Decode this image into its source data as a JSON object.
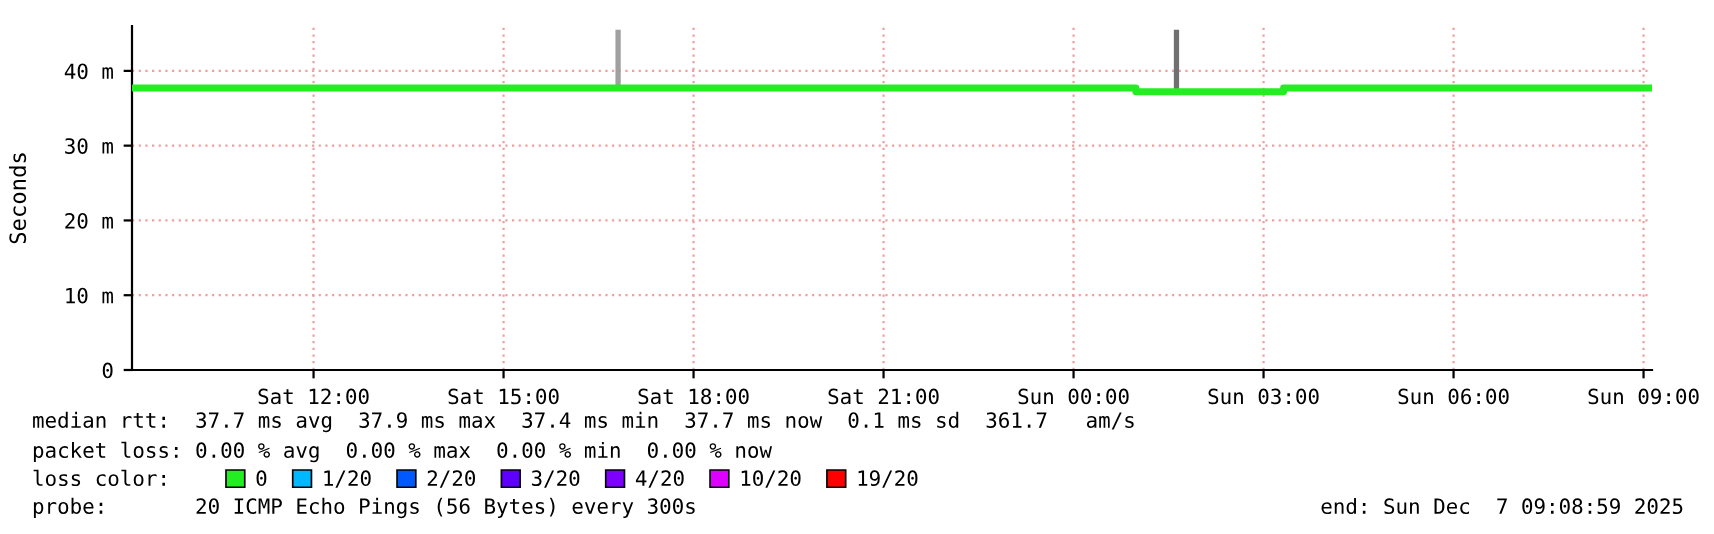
{
  "chart_data": {
    "type": "step",
    "ylabel": "Seconds",
    "xlim": [
      "2025-12-06T09:08",
      "2025-12-07T09:08"
    ],
    "xticks": [
      {
        "value": "2025-12-06T12:00",
        "label": "Sat 12:00"
      },
      {
        "value": "2025-12-06T15:00",
        "label": "Sat 15:00"
      },
      {
        "value": "2025-12-06T18:00",
        "label": "Sat 18:00"
      },
      {
        "value": "2025-12-06T21:00",
        "label": "Sat 21:00"
      },
      {
        "value": "2025-12-07T00:00",
        "label": "Sun 00:00"
      },
      {
        "value": "2025-12-07T03:00",
        "label": "Sun 03:00"
      },
      {
        "value": "2025-12-07T06:00",
        "label": "Sun 06:00"
      },
      {
        "value": "2025-12-07T09:00",
        "label": "Sun 09:00"
      }
    ],
    "ylim": [
      0,
      46
    ],
    "yticks": [
      0,
      {
        "value": 10,
        "label": "10 m"
      },
      {
        "value": 20,
        "label": "20 m"
      },
      {
        "value": 30,
        "label": "30 m"
      },
      {
        "value": 40,
        "label": "40 m"
      }
    ],
    "grid": true,
    "legend": "bottom",
    "legend_title": "loss color:",
    "series": [
      {
        "name": "0",
        "color": "#22ee22",
        "x": [
          "2025-12-06T09:08",
          "2025-12-07T00:59",
          "2025-12-07T03:19",
          "2025-12-07T09:08"
        ],
        "values": [
          37.7,
          37.2,
          37.7,
          37.7
        ]
      },
      {
        "name": "1/20",
        "color": "#00b8ff"
      },
      {
        "name": "2/20",
        "color": "#0059ff"
      },
      {
        "name": "3/20",
        "color": "#5e00ff"
      },
      {
        "name": "4/20",
        "color": "#7e00ff"
      },
      {
        "name": "10/20",
        "color": "#dd00ff"
      },
      {
        "name": "19/20",
        "color": "#ff0000"
      },
      {
        "type": "bar",
        "color": "#a0a0a0",
        "x": [
          "2025-12-06T16:46"
        ],
        "base": [
          37.8
        ],
        "values": [
          7.7
        ]
      },
      {
        "type": "bar",
        "color": "#707070",
        "x": [
          "2025-12-07T01:35"
        ],
        "base": [
          37.4
        ],
        "values": [
          8.1
        ]
      }
    ],
    "annotations": [
      "median rtt:  37.7 ms avg  37.9 ms max  37.4 ms min  37.7 ms now  0.1 ms sd  361.7   am/s",
      "packet loss: 0.00 % avg  0.00 % max  0.00 % min  0.00 % now",
      "probe:       20 ICMP Echo Pings (56 Bytes) every 300s",
      "end: Sun Dec  7 09:08:59 2025"
    ]
  }
}
